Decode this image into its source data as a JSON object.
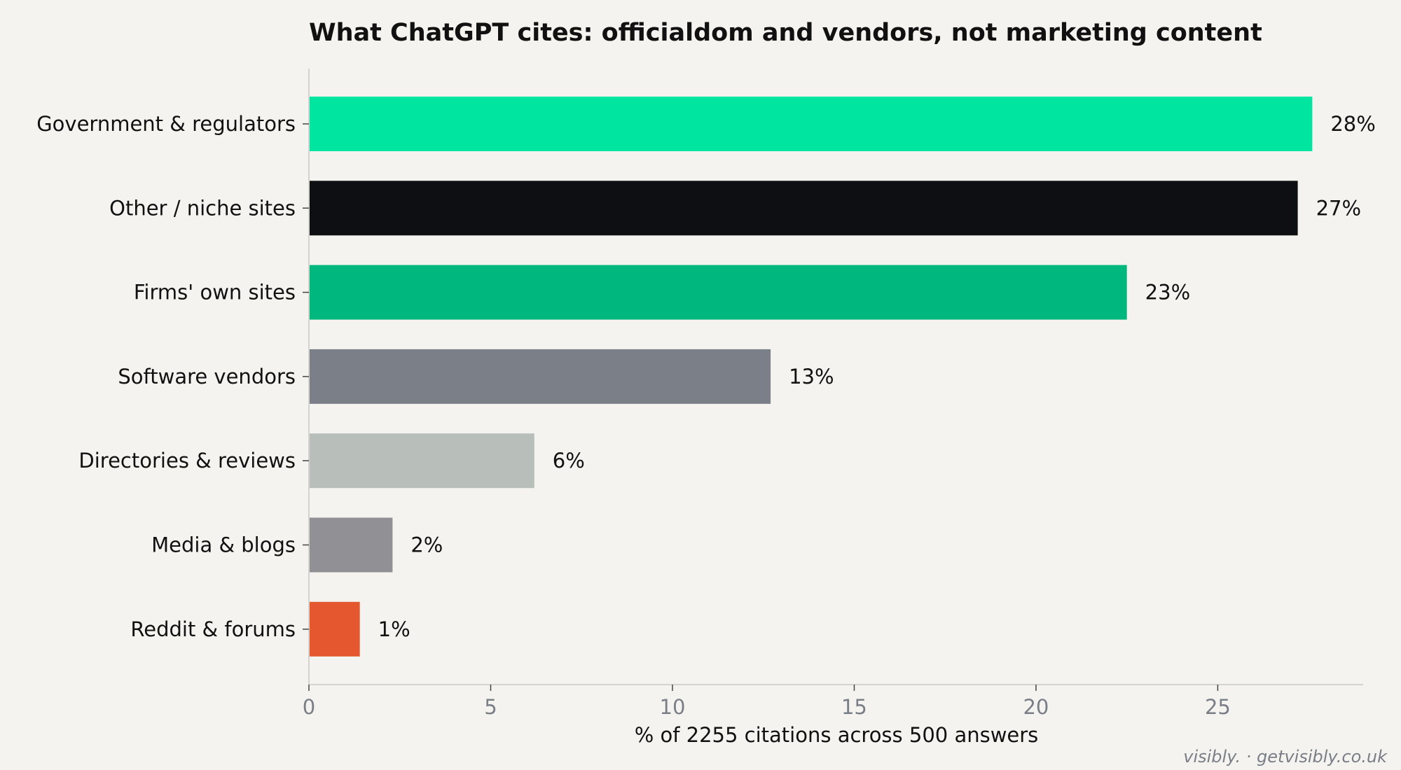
{
  "chart_data": {
    "type": "bar",
    "orientation": "horizontal",
    "title": "What ChatGPT cites: officialdom and vendors, not marketing content",
    "xlabel": "% of 2255 citations across 500 answers",
    "ylabel": "",
    "xlim": [
      0,
      29
    ],
    "xticks": [
      0,
      5,
      10,
      15,
      20,
      25
    ],
    "grid": false,
    "legend": "none",
    "categories": [
      "Government & regulators",
      "Other / niche sites",
      "Firms' own sites",
      "Software vendors",
      "Directories & reviews",
      "Media & blogs",
      "Reddit & forums"
    ],
    "values": [
      27.6,
      27.2,
      22.5,
      12.7,
      6.2,
      2.3,
      1.4
    ],
    "value_labels": [
      "28%",
      "27%",
      "23%",
      "13%",
      "6%",
      "2%",
      "1%"
    ],
    "colors": [
      "#00e5a0",
      "#0e0f13",
      "#00b87e",
      "#7b7f88",
      "#b8bfba",
      "#919095",
      "#e5572f"
    ],
    "credit": "visibly. · getvisibly.co.uk"
  }
}
